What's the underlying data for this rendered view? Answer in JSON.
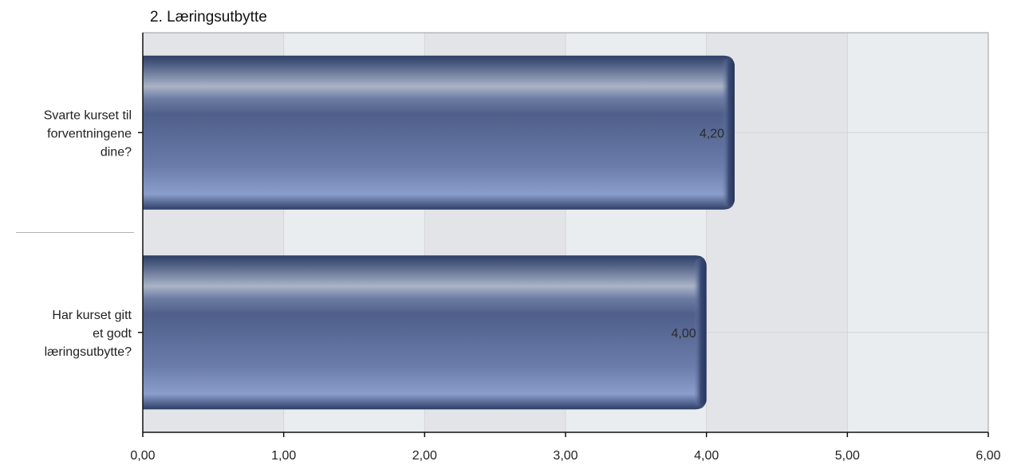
{
  "chart_data": {
    "type": "bar",
    "orientation": "horizontal",
    "title": "2. Læringsutbytte",
    "categories": [
      "Svarte kurset til forventningene dine?",
      "Har kurset gitt et godt læringsutbytte?"
    ],
    "category_lines": [
      [
        "Svarte kurset til",
        "forventningene",
        "dine?"
      ],
      [
        "Har kurset gitt",
        "et godt",
        "læringsutbytte?"
      ]
    ],
    "values": [
      4.2,
      4.0
    ],
    "value_labels": [
      "4,20",
      "4,00"
    ],
    "xlim": [
      0,
      6
    ],
    "ticks": [
      0,
      1,
      2,
      3,
      4,
      5,
      6
    ],
    "tick_labels": [
      "0,00",
      "1,00",
      "2,00",
      "3,00",
      "4,00",
      "5,00",
      "6,00"
    ],
    "grid": true,
    "legend": "none",
    "xlabel": "",
    "ylabel": ""
  },
  "colors": {
    "plot_band_light": "#eaedf0",
    "plot_band_dark": "#e3e4e7",
    "grid": "#d2d5d9",
    "bar_top": "#2e3f66",
    "bar_highlight": "#aab4c7",
    "bar_mid": "#4f5f8a",
    "bar_bottom": "#8b9dcb",
    "axis": "#111111"
  }
}
